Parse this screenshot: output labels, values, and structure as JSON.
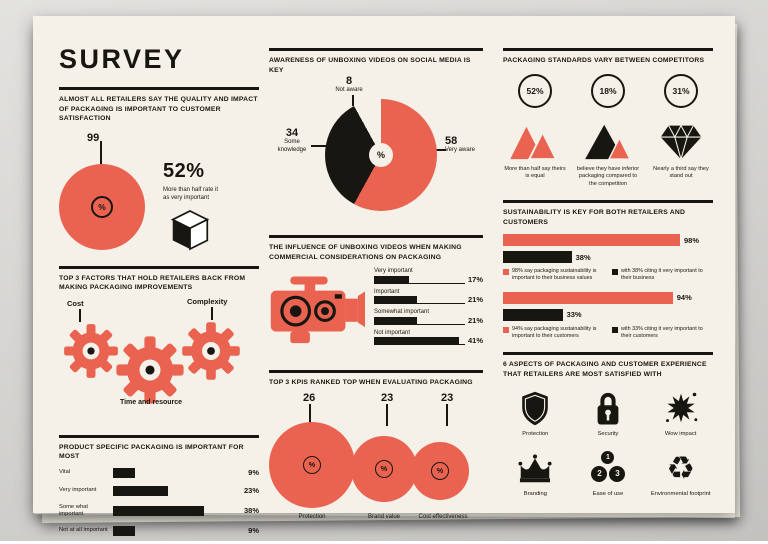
{
  "title": "SURVEY",
  "sym": {
    "pct": "%"
  },
  "colors": {
    "accent": "#EA6350",
    "ink": "#181611",
    "paper": "#F5F1E8",
    "backdrop": "#D2D1CE"
  },
  "left": {
    "importance": {
      "heading": "ALMOST ALL RETAILERS SAY THE QUALITY AND IMPACT OF PACKAGING IS IMPORTANT TO CUSTOMER SATISFACTION",
      "pie_value": "99",
      "stat_value": "52%",
      "stat_caption": "More than half rate it as very important"
    },
    "factors": {
      "heading": "TOP 3 FACTORS THAT HOLD RETAILERS BACK FROM MAKING PACKAGING IMPROVEMENTS",
      "gear_labels": [
        "Cost",
        "Complexity",
        "Time and resource"
      ]
    },
    "product": {
      "heading": "PRODUCT SPECIFIC PACKAGING IS IMPORTANT FOR MOST",
      "bars": [
        {
          "label": "Vital",
          "value": "9%",
          "pct": 9
        },
        {
          "label": "Very important",
          "value": "23%",
          "pct": 23
        },
        {
          "label": "Some what important",
          "value": "38%",
          "pct": 38
        },
        {
          "label": "Not at all important",
          "value": "9%",
          "pct": 9
        }
      ]
    }
  },
  "middle": {
    "awareness": {
      "heading": "AWARENESS OF UNBOXING VIDEOS ON SOCIAL MEDIA IS KEY",
      "segments": [
        {
          "label": "Very aware",
          "display": "58",
          "value": 58,
          "color": "#EA6350"
        },
        {
          "label": "Some knowledge",
          "display": "34",
          "value": 34,
          "color": "#181611"
        },
        {
          "label": "Not aware",
          "display": "8",
          "value": 8,
          "color": "#F5F1E8"
        }
      ]
    },
    "influence": {
      "heading": "THE INFLUENCE OF UNBOXING VIDEOS WHEN MAKING COMMERCIAL CONSIDERATIONS ON PACKAGING",
      "bars": [
        {
          "label": "Very important",
          "value": "17%",
          "pct": 17
        },
        {
          "label": "Important",
          "value": "21%",
          "pct": 21
        },
        {
          "label": "Somewhat important",
          "value": "21%",
          "pct": 21
        },
        {
          "label": "Not important",
          "value": "41%",
          "pct": 41
        }
      ]
    },
    "kpis": {
      "heading": "TOP 3 KPIS RANKED TOP WHEN EVALUATING PACKAGING",
      "items": [
        {
          "label": "Protection",
          "value": "26"
        },
        {
          "label": "Brand value",
          "value": "23"
        },
        {
          "label": "Cost effectiveness",
          "value": "23"
        }
      ]
    }
  },
  "right": {
    "standards": {
      "heading": "PACKAGING STANDARDS VARY BETWEEN COMPETITORS",
      "items": [
        {
          "value": "52%",
          "caption": "More than half say theirs is equal",
          "icon": "twin-peaks-icon"
        },
        {
          "value": "18%",
          "caption": "believe they have inferior packaging compared to the competition",
          "icon": "mountain-icon"
        },
        {
          "value": "31%",
          "caption": "Nearly a third say they stand out",
          "icon": "diamond-icon"
        }
      ]
    },
    "sustainability": {
      "heading": "SUSTAINABILITY IS KEY FOR BOTH RETAILERS AND CUSTOMERS",
      "groups": [
        {
          "primary": {
            "value": "98%",
            "pct": 98
          },
          "secondary": {
            "value": "38%",
            "pct": 38
          },
          "legend_primary": "98% say packaging sustainability is important to their business values",
          "legend_secondary": "with 38% citing it very important to their business"
        },
        {
          "primary": {
            "value": "94%",
            "pct": 94
          },
          "secondary": {
            "value": "33%",
            "pct": 33
          },
          "legend_primary": "94% say packaging sustainability is important to their customers",
          "legend_secondary": "with 33% citing it very important to their customers"
        }
      ]
    },
    "aspects": {
      "heading": "6 ASPECTS OF PACKAGING AND CUSTOMER EXPERIENCE THAT RETAILERS ARE MOST SATISFIED WITH",
      "items": [
        {
          "label": "Protection",
          "icon": "shield-icon"
        },
        {
          "label": "Security",
          "icon": "padlock-icon"
        },
        {
          "label": "Wow impact",
          "icon": "splat-icon"
        },
        {
          "label": "Branding",
          "icon": "crown-icon"
        },
        {
          "label": "Ease of use",
          "icon": "steps-icon",
          "numbers": [
            "1",
            "2",
            "3"
          ]
        },
        {
          "label": "Environmental footprint",
          "icon": "recycle-icon",
          "glyph": "♻"
        }
      ]
    }
  },
  "chart_data": [
    {
      "type": "pie",
      "title": "ALMOST ALL RETAILERS SAY THE QUALITY AND IMPACT OF PACKAGING IS IMPORTANT TO CUSTOMER SATISFACTION",
      "labels": [
        "Say packaging is important to customer satisfaction"
      ],
      "values": [
        99
      ],
      "annotations": [
        "52% — More than half rate it as very important"
      ]
    },
    {
      "type": "bar",
      "title": "PRODUCT SPECIFIC PACKAGING IS IMPORTANT FOR MOST",
      "orientation": "horizontal",
      "categories": [
        "Vital",
        "Very important",
        "Some what important",
        "Not at all important"
      ],
      "values": [
        9,
        23,
        38,
        9
      ],
      "unit": "%"
    },
    {
      "type": "pie",
      "title": "AWARENESS OF UNBOXING VIDEOS ON SOCIAL MEDIA IS KEY",
      "labels": [
        "Very aware",
        "Some knowledge",
        "Not aware"
      ],
      "values": [
        58,
        34,
        8
      ]
    },
    {
      "type": "bar",
      "title": "THE INFLUENCE OF UNBOXING VIDEOS WHEN MAKING COMMERCIAL CONSIDERATIONS ON PACKAGING",
      "orientation": "horizontal",
      "categories": [
        "Very important",
        "Important",
        "Somewhat important",
        "Not important"
      ],
      "values": [
        17,
        21,
        21,
        41
      ],
      "unit": "%"
    },
    {
      "type": "bar",
      "title": "TOP 3 KPIS RANKED TOP WHEN EVALUATING PACKAGING",
      "categories": [
        "Protection",
        "Brand value",
        "Cost effectiveness"
      ],
      "values": [
        26,
        23,
        23
      ],
      "note": "shown as proportional circles"
    },
    {
      "type": "bar",
      "title": "PACKAGING STANDARDS VARY BETWEEN COMPETITORS",
      "categories": [
        "More than half say theirs is equal",
        "believe they have inferior packaging compared to the competition",
        "Nearly a third say they stand out"
      ],
      "values": [
        52,
        18,
        31
      ],
      "unit": "%"
    },
    {
      "type": "bar",
      "title": "SUSTAINABILITY IS KEY FOR BOTH RETAILERS AND CUSTOMERS",
      "orientation": "horizontal",
      "categories": [
        "important to their business values",
        "important to their customers"
      ],
      "series": [
        {
          "name": "say packaging sustainability is important",
          "values": [
            98,
            94
          ]
        },
        {
          "name": "citing it very important",
          "values": [
            38,
            33
          ]
        }
      ],
      "unit": "%"
    }
  ]
}
